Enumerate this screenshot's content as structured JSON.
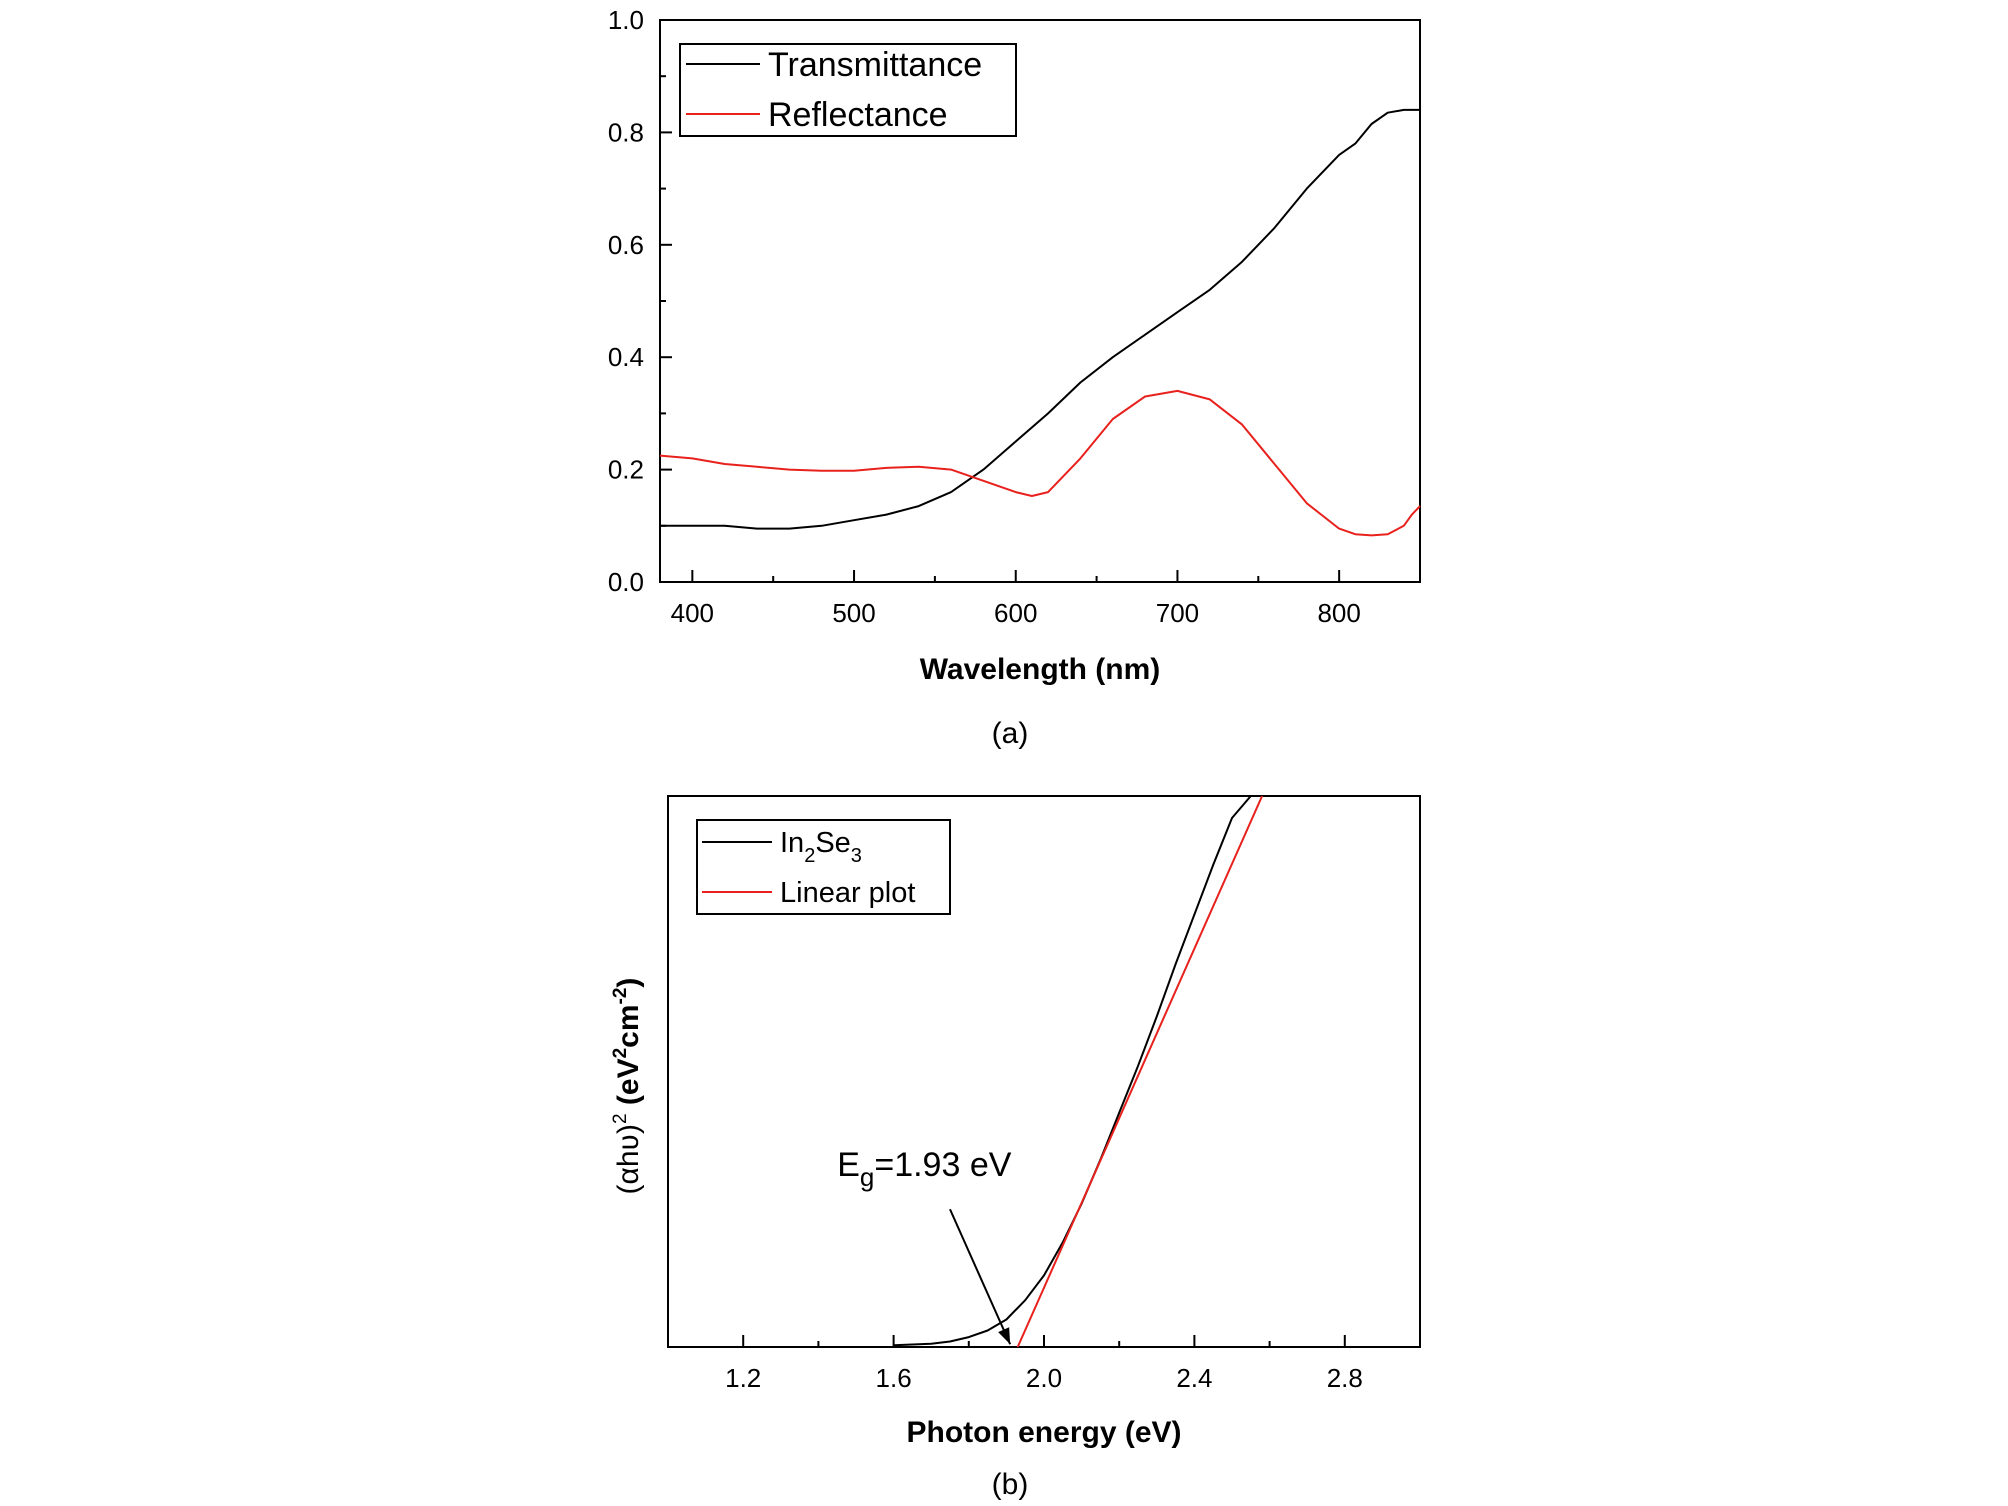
{
  "chart_data": [
    {
      "type": "line",
      "panel_label": "(a)",
      "xlabel": "Wavelength (nm)",
      "ylabel": "",
      "xlim": [
        380,
        850
      ],
      "ylim": [
        0.0,
        1.0
      ],
      "xticks": [
        400,
        500,
        600,
        700,
        800
      ],
      "yticks": [
        0.0,
        0.2,
        0.4,
        0.6,
        0.8,
        1.0
      ],
      "x_tick_labels": [
        "400",
        "500",
        "600",
        "700",
        "800"
      ],
      "y_tick_labels": [
        "0.0",
        "0.2",
        "0.4",
        "0.6",
        "0.8",
        "1.0"
      ],
      "legend_position": "top-left",
      "grid": false,
      "series": [
        {
          "name": "Transmittance",
          "color": "#000000",
          "x": [
            380,
            400,
            420,
            440,
            460,
            480,
            500,
            520,
            540,
            560,
            580,
            600,
            620,
            640,
            660,
            680,
            700,
            720,
            740,
            760,
            780,
            800,
            810,
            820,
            830,
            840,
            850
          ],
          "y": [
            0.1,
            0.1,
            0.1,
            0.095,
            0.095,
            0.1,
            0.11,
            0.12,
            0.135,
            0.16,
            0.2,
            0.25,
            0.3,
            0.355,
            0.4,
            0.44,
            0.48,
            0.52,
            0.57,
            0.63,
            0.7,
            0.76,
            0.78,
            0.815,
            0.835,
            0.84,
            0.84
          ]
        },
        {
          "name": "Reflectance",
          "color": "#e8211d",
          "x": [
            380,
            400,
            420,
            440,
            460,
            480,
            500,
            520,
            540,
            560,
            580,
            600,
            610,
            620,
            640,
            660,
            680,
            700,
            720,
            740,
            760,
            780,
            800,
            810,
            820,
            830,
            840,
            845,
            850
          ],
          "y": [
            0.225,
            0.22,
            0.21,
            0.205,
            0.2,
            0.198,
            0.198,
            0.203,
            0.205,
            0.2,
            0.18,
            0.16,
            0.153,
            0.16,
            0.22,
            0.29,
            0.33,
            0.34,
            0.325,
            0.28,
            0.21,
            0.14,
            0.095,
            0.085,
            0.083,
            0.085,
            0.1,
            0.12,
            0.135
          ]
        }
      ]
    },
    {
      "type": "line",
      "panel_label": "(b)",
      "xlabel": "Photon energy (eV)",
      "ylabel_parts": [
        "(αhʋ)",
        "2",
        " (eV",
        "2",
        "cm",
        "-2",
        ")"
      ],
      "xlim": [
        1.0,
        3.0
      ],
      "ylim": [
        0,
        100
      ],
      "xticks": [
        1.2,
        1.6,
        2.0,
        2.4,
        2.8
      ],
      "x_tick_labels": [
        "1.2",
        "1.6",
        "2.0",
        "2.4",
        "2.8"
      ],
      "y_ticks_shown": false,
      "legend_position": "top-left",
      "grid": false,
      "annotation": {
        "text_main": "E",
        "text_sub": "g",
        "text_rest": "=1.93 eV",
        "text_x": 1.45,
        "text_y": 31,
        "arrow_from": [
          1.75,
          25
        ],
        "arrow_to": [
          1.91,
          0.5
        ]
      },
      "series": [
        {
          "name_main": "In",
          "name_sub1": "2",
          "name_mid": "Se",
          "name_sub2": "3",
          "color": "#000000",
          "x": [
            1.6,
            1.7,
            1.75,
            1.8,
            1.85,
            1.9,
            1.95,
            2.0,
            2.05,
            2.1,
            2.15,
            2.2,
            2.25,
            2.3,
            2.35,
            2.4,
            2.45,
            2.5,
            2.55
          ],
          "y": [
            0.3,
            0.6,
            1.0,
            1.8,
            3.0,
            5.0,
            8.5,
            13.0,
            19.0,
            26.0,
            34.0,
            42.5,
            51.0,
            60.0,
            69.5,
            78.5,
            87.5,
            96.0,
            100.0
          ]
        },
        {
          "name": "Linear plot",
          "color": "#e8211d",
          "x": [
            1.93,
            2.58
          ],
          "y": [
            0.0,
            100.0
          ]
        }
      ]
    }
  ]
}
